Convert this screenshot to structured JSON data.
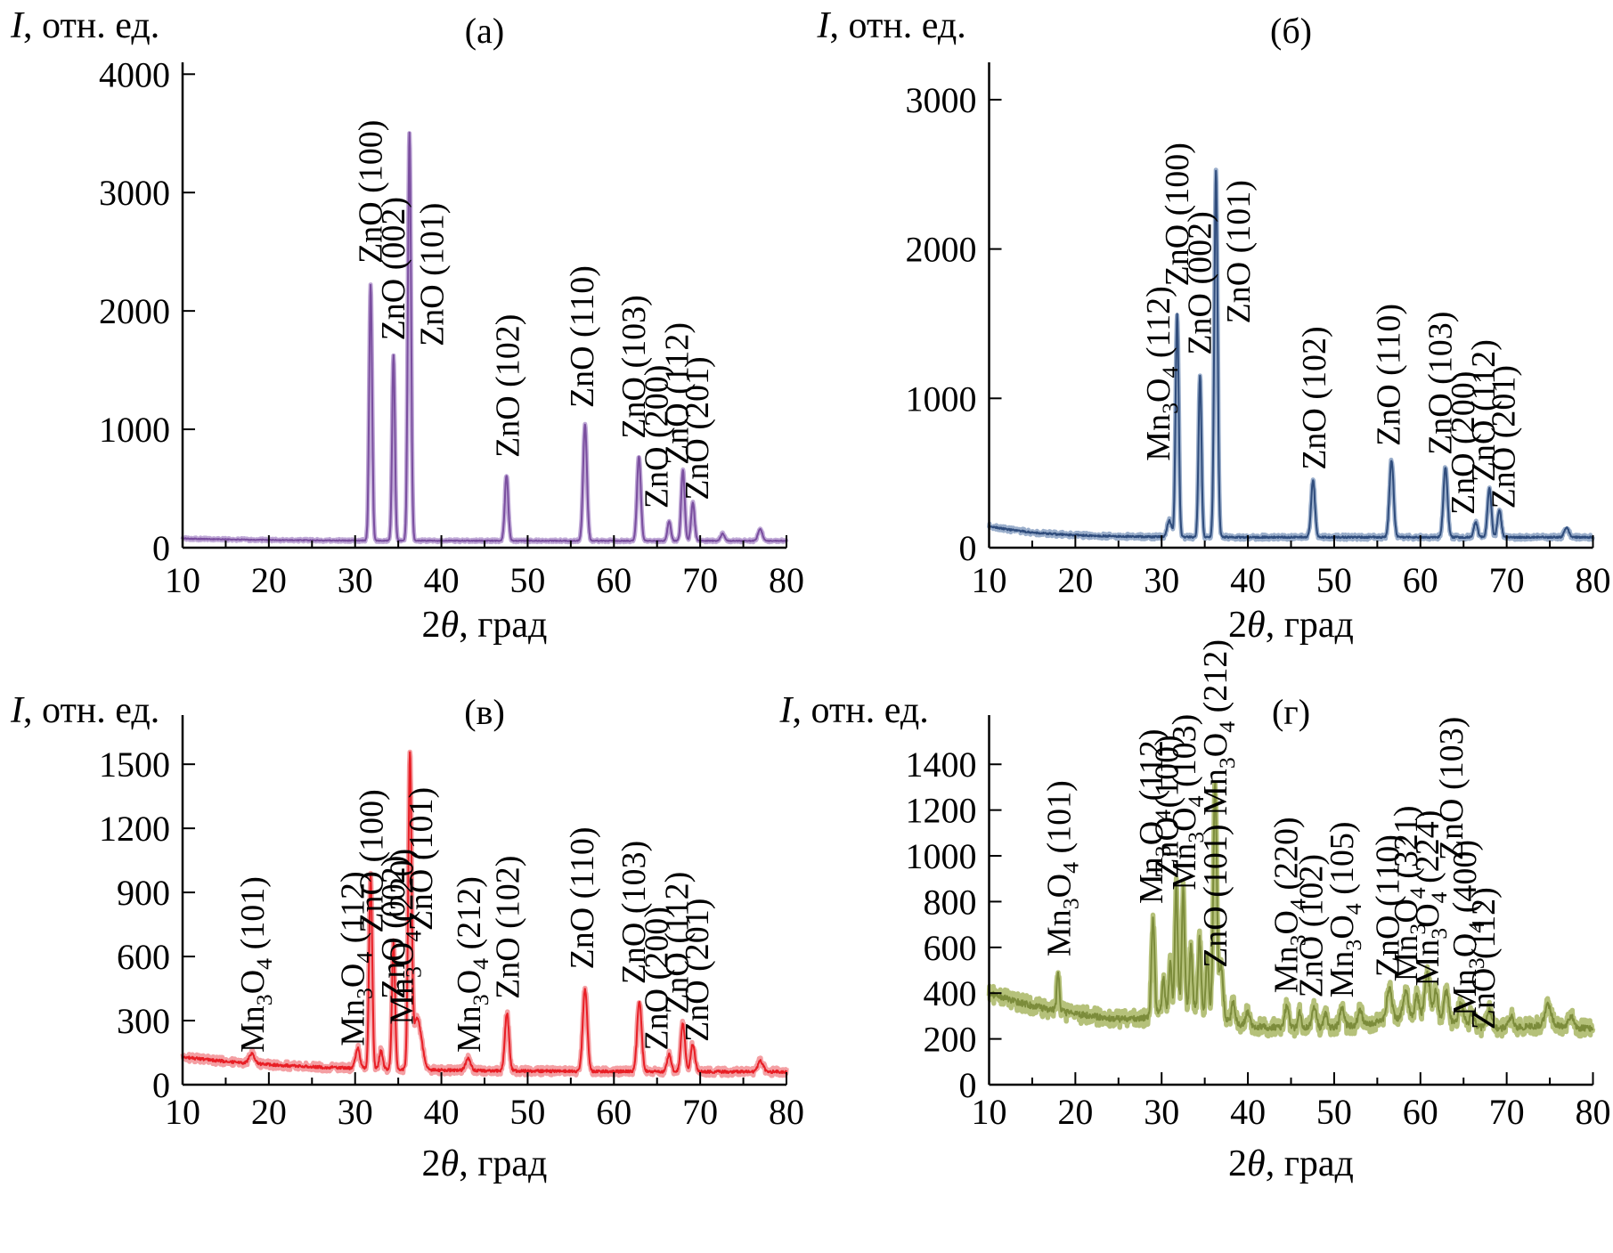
{
  "background": "#ffffff",
  "chart_data": [
    {
      "type": "line",
      "panel_title": "(а)",
      "ylabel": "I, отн. ед.",
      "xlabel": "2θ, град",
      "legend": null,
      "grid": false,
      "color": "#7A4E9F",
      "halo_color": "#BFA8D6",
      "xlim": [
        10,
        80
      ],
      "display_ymax": 4100,
      "xticks": [
        10,
        20,
        30,
        40,
        50,
        60,
        70,
        80
      ],
      "yticks": [
        0,
        1000,
        2000,
        3000,
        4000
      ],
      "x_minor_step": 5,
      "baseline": {
        "b0": 58,
        "amp": 20,
        "tau": 10
      },
      "humps": [],
      "noise": 8,
      "seed": 101,
      "peaks": [
        {
          "x": 31.8,
          "i": 2160,
          "w": 0.17
        },
        {
          "x": 34.45,
          "i": 1570,
          "w": 0.16
        },
        {
          "x": 36.3,
          "i": 3450,
          "w": 0.18
        },
        {
          "x": 47.55,
          "i": 550,
          "w": 0.2
        },
        {
          "x": 56.65,
          "i": 980,
          "w": 0.22
        },
        {
          "x": 62.9,
          "i": 715,
          "w": 0.22
        },
        {
          "x": 66.4,
          "i": 165,
          "w": 0.2
        },
        {
          "x": 68.0,
          "i": 595,
          "w": 0.2
        },
        {
          "x": 69.15,
          "i": 320,
          "w": 0.2
        },
        {
          "x": 72.6,
          "i": 60,
          "w": 0.22
        },
        {
          "x": 76.95,
          "i": 100,
          "w": 0.25
        }
      ],
      "labels": [
        {
          "text": "ZnO (100)",
          "x": 33.1,
          "y": 2400
        },
        {
          "text": "ZnO (002)",
          "x": 35.7,
          "y": 1750
        },
        {
          "text": "ZnO (101)",
          "x": 40.2,
          "y": 1700
        },
        {
          "text": "ZnO (102)",
          "x": 49.0,
          "y": 760
        },
        {
          "text": "ZnO (110)",
          "x": 57.6,
          "y": 1180
        },
        {
          "text": "ZnO (103)",
          "x": 63.6,
          "y": 920
        },
        {
          "text": "ZnO (200)",
          "x": 66.2,
          "y": 330
        },
        {
          "text": "ZnO (112)",
          "x": 68.6,
          "y": 700
        },
        {
          "text": "ZnO (201)",
          "x": 70.9,
          "y": 400
        }
      ]
    },
    {
      "type": "line",
      "panel_title": "(б)",
      "ylabel": "I, отн. ед.",
      "xlabel": "2θ, град",
      "legend": null,
      "grid": false,
      "color": "#2F4C7C",
      "halo_color": "#9AAECB",
      "xlim": [
        10,
        80
      ],
      "display_ymax": 3250,
      "xticks": [
        10,
        20,
        30,
        40,
        50,
        60,
        70,
        80
      ],
      "yticks": [
        0,
        1000,
        2000,
        3000
      ],
      "x_minor_step": 5,
      "baseline": {
        "b0": 70,
        "amp": 75,
        "tau": 6
      },
      "humps": [],
      "noise": 12,
      "seed": 202,
      "peaks": [
        {
          "x": 30.9,
          "i": 110,
          "w": 0.25
        },
        {
          "x": 31.8,
          "i": 1500,
          "w": 0.18
        },
        {
          "x": 34.45,
          "i": 1080,
          "w": 0.17
        },
        {
          "x": 36.3,
          "i": 2450,
          "w": 0.19
        },
        {
          "x": 47.55,
          "i": 380,
          "w": 0.22
        },
        {
          "x": 56.65,
          "i": 515,
          "w": 0.24
        },
        {
          "x": 62.9,
          "i": 465,
          "w": 0.24
        },
        {
          "x": 66.4,
          "i": 100,
          "w": 0.22
        },
        {
          "x": 68.0,
          "i": 330,
          "w": 0.22
        },
        {
          "x": 69.15,
          "i": 180,
          "w": 0.22
        },
        {
          "x": 76.95,
          "i": 70,
          "w": 0.25
        }
      ],
      "labels": [
        {
          "text": "Mn₃O₄ (112)",
          "x": 30.9,
          "y": 580
        },
        {
          "text": "ZnO (100)",
          "x": 33.1,
          "y": 1750
        },
        {
          "text": "ZnO (002)",
          "x": 35.7,
          "y": 1290
        },
        {
          "text": "ZnO (101)",
          "x": 40.2,
          "y": 1500
        },
        {
          "text": "ZnO (102)",
          "x": 49.0,
          "y": 520
        },
        {
          "text": "ZnO (110)",
          "x": 57.6,
          "y": 680
        },
        {
          "text": "ZnO (103)",
          "x": 63.6,
          "y": 620
        },
        {
          "text": "ZnO (200)",
          "x": 66.2,
          "y": 220
        },
        {
          "text": "ZnO (112)",
          "x": 68.6,
          "y": 440
        },
        {
          "text": "ZnO (201)",
          "x": 70.9,
          "y": 260
        }
      ]
    },
    {
      "type": "line",
      "panel_title": "(в)",
      "ylabel": "I, отн. ед.",
      "xlabel": "2θ, град",
      "legend": null,
      "grid": false,
      "color": "#E81E25",
      "halo_color": "#F49FA3",
      "xlim": [
        10,
        80
      ],
      "display_ymax": 1730,
      "xticks": [
        10,
        20,
        30,
        40,
        50,
        60,
        70,
        80
      ],
      "yticks": [
        0,
        300,
        600,
        900,
        1200,
        1500
      ],
      "x_minor_step": 5,
      "baseline": {
        "b0": 60,
        "amp": 70,
        "tau": 14
      },
      "humps": [],
      "noise": 13,
      "seed": 303,
      "peaks": [
        {
          "x": 18.0,
          "i": 45,
          "w": 0.3
        },
        {
          "x": 30.3,
          "i": 95,
          "w": 0.25
        },
        {
          "x": 31.8,
          "i": 910,
          "w": 0.18
        },
        {
          "x": 33.0,
          "i": 85,
          "w": 0.2
        },
        {
          "x": 34.45,
          "i": 590,
          "w": 0.18
        },
        {
          "x": 36.35,
          "i": 1430,
          "w": 0.19
        },
        {
          "x": 37.2,
          "i": 240,
          "w": 0.5
        },
        {
          "x": 43.1,
          "i": 55,
          "w": 0.3
        },
        {
          "x": 47.6,
          "i": 270,
          "w": 0.24
        },
        {
          "x": 56.65,
          "i": 385,
          "w": 0.26
        },
        {
          "x": 62.95,
          "i": 330,
          "w": 0.26
        },
        {
          "x": 66.4,
          "i": 80,
          "w": 0.24
        },
        {
          "x": 68.0,
          "i": 225,
          "w": 0.24
        },
        {
          "x": 69.15,
          "i": 130,
          "w": 0.24
        },
        {
          "x": 77.0,
          "i": 50,
          "w": 0.3
        }
      ],
      "labels": [
        {
          "text": "Mn₃O₄ (101)",
          "x": 19.4,
          "y": 150
        },
        {
          "text": "Mn₃O₄ (112)",
          "x": 31.0,
          "y": 180
        },
        {
          "text": "ZnO (100)",
          "x": 33.2,
          "y": 710
        },
        {
          "text": "ZnO (002)",
          "x": 35.7,
          "y": 400
        },
        {
          "text": "Mn₃O₄ (220)",
          "x": 36.7,
          "y": 280
        },
        {
          "text": "ZnO (101)",
          "x": 38.9,
          "y": 720
        },
        {
          "text": "Mn₃O₄ (212)",
          "x": 44.5,
          "y": 150
        },
        {
          "text": "ZnO (102)",
          "x": 49.0,
          "y": 400
        },
        {
          "text": "ZnO (110)",
          "x": 57.6,
          "y": 540
        },
        {
          "text": "ZnO (103)",
          "x": 63.6,
          "y": 470
        },
        {
          "text": "ZnO (200)",
          "x": 66.2,
          "y": 160
        },
        {
          "text": "ZnO (112)",
          "x": 68.6,
          "y": 330
        },
        {
          "text": "ZnO (201)",
          "x": 70.9,
          "y": 200
        }
      ]
    },
    {
      "type": "line",
      "panel_title": "(г)",
      "ylabel": "I, отн. ед.",
      "xlabel": "2θ, град",
      "legend": null,
      "grid": false,
      "color": "#7C8C3B",
      "halo_color": "#B5C17A",
      "xlim": [
        10,
        80
      ],
      "display_ymax": 1615,
      "xticks": [
        10,
        20,
        30,
        40,
        50,
        60,
        70,
        80
      ],
      "yticks": [
        0,
        200,
        400,
        600,
        800,
        1000,
        1200,
        1400
      ],
      "x_minor_step": 5,
      "baseline": {
        "b0": 240,
        "amp": 160,
        "tau": 12
      },
      "humps": [
        {
          "x": 33,
          "s": 2.8,
          "a": 90
        },
        {
          "x": 59,
          "s": 4.5,
          "a": 45
        },
        {
          "x": 75,
          "s": 2.5,
          "a": 20
        }
      ],
      "noise": 28,
      "seed": 404,
      "peaks": [
        {
          "x": 18.0,
          "i": 170,
          "w": 0.15
        },
        {
          "x": 29.0,
          "i": 420,
          "w": 0.18
        },
        {
          "x": 30.2,
          "i": 150,
          "w": 0.15
        },
        {
          "x": 31.0,
          "i": 190,
          "w": 0.15
        },
        {
          "x": 31.7,
          "i": 520,
          "w": 0.16
        },
        {
          "x": 32.5,
          "i": 500,
          "w": 0.16
        },
        {
          "x": 33.4,
          "i": 260,
          "w": 0.15
        },
        {
          "x": 34.4,
          "i": 300,
          "w": 0.16
        },
        {
          "x": 35.3,
          "i": 260,
          "w": 0.15
        },
        {
          "x": 36.2,
          "i": 1010,
          "w": 0.2
        },
        {
          "x": 36.9,
          "i": 230,
          "w": 0.22
        },
        {
          "x": 38.3,
          "i": 90,
          "w": 0.2
        },
        {
          "x": 40.0,
          "i": 60,
          "w": 0.25
        },
        {
          "x": 44.5,
          "i": 90,
          "w": 0.25
        },
        {
          "x": 46.0,
          "i": 65,
          "w": 0.2
        },
        {
          "x": 47.7,
          "i": 85,
          "w": 0.25
        },
        {
          "x": 49.0,
          "i": 60,
          "w": 0.2
        },
        {
          "x": 50.9,
          "i": 85,
          "w": 0.25
        },
        {
          "x": 53.0,
          "i": 60,
          "w": 0.25
        },
        {
          "x": 56.4,
          "i": 140,
          "w": 0.3
        },
        {
          "x": 58.3,
          "i": 120,
          "w": 0.3
        },
        {
          "x": 59.6,
          "i": 100,
          "w": 0.25
        },
        {
          "x": 60.8,
          "i": 200,
          "w": 0.3
        },
        {
          "x": 61.8,
          "i": 130,
          "w": 0.25
        },
        {
          "x": 63.0,
          "i": 135,
          "w": 0.3
        },
        {
          "x": 64.7,
          "i": 95,
          "w": 0.3
        },
        {
          "x": 66.0,
          "i": 60,
          "w": 0.25
        },
        {
          "x": 68.0,
          "i": 75,
          "w": 0.3
        },
        {
          "x": 70.5,
          "i": 50,
          "w": 0.3
        },
        {
          "x": 74.8,
          "i": 90,
          "w": 0.35
        },
        {
          "x": 77.5,
          "i": 45,
          "w": 0.3
        }
      ],
      "labels": [
        {
          "text": "Mn₃O₄ (101)",
          "x": 19.4,
          "y": 560
        },
        {
          "text": "Mn₃O₄ (112)",
          "x": 30.1,
          "y": 790
        },
        {
          "text": "ZnO (100)",
          "x": 31.9,
          "y": 900
        },
        {
          "text": "Mn₃O₄ (103)",
          "x": 33.9,
          "y": 850
        },
        {
          "text": "ZnO (101) Mn₃O₄ (212)",
          "x": 37.5,
          "y": 510
        },
        {
          "text": "Mn₃O₄ (220)",
          "x": 45.7,
          "y": 400
        },
        {
          "text": "ZnO (102)",
          "x": 48.6,
          "y": 380
        },
        {
          "text": "Mn₃O₄ (105)",
          "x": 52.2,
          "y": 380
        },
        {
          "text": "ZnO (110)",
          "x": 57.5,
          "y": 470
        },
        {
          "text": "Mn₃O₄ (321)",
          "x": 59.6,
          "y": 450
        },
        {
          "text": "Mn₃O₄ (224)",
          "x": 62.1,
          "y": 430
        },
        {
          "text": "ZnO (103)",
          "x": 64.9,
          "y": 980
        },
        {
          "text": "Mn₃O₄ (400)",
          "x": 66.4,
          "y": 300
        },
        {
          "text": "ZnO (112)",
          "x": 68.6,
          "y": 240
        }
      ]
    }
  ]
}
